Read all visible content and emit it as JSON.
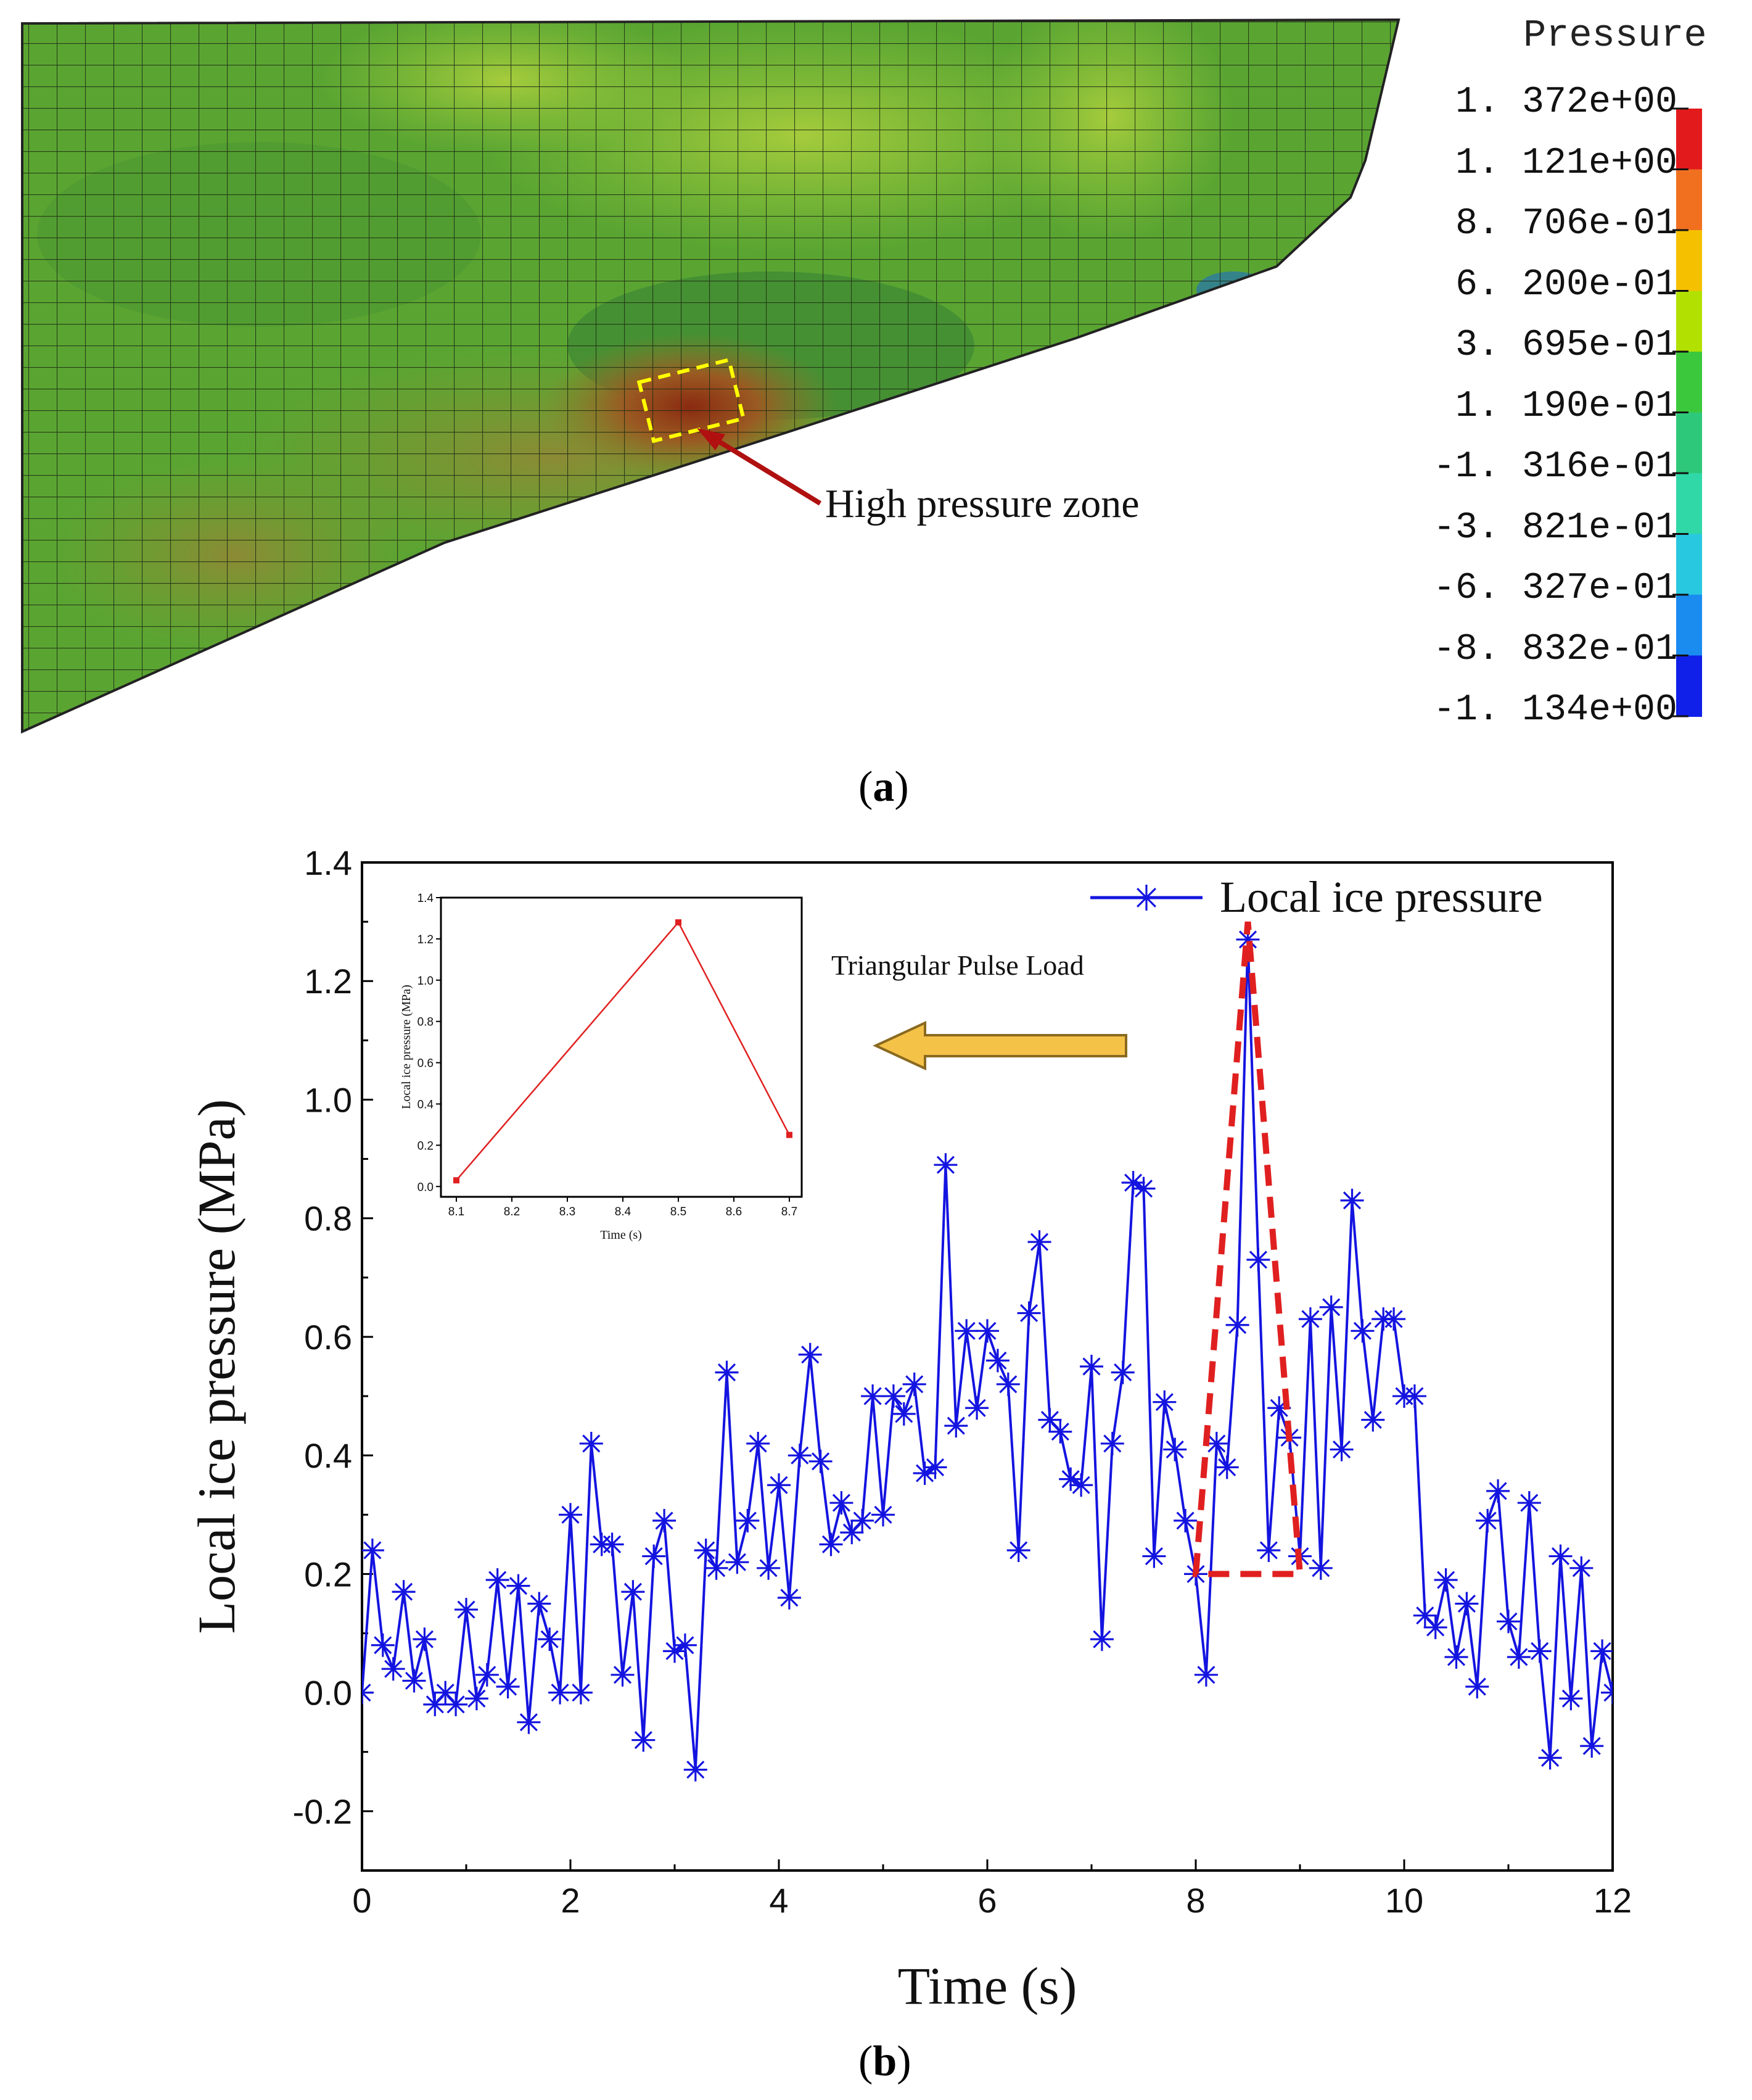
{
  "panel_a": {
    "caption_letter": "a",
    "annotation": "High pressure zone",
    "legend": {
      "title": "Pressure",
      "values": [
        "1. 372e+00",
        "1. 121e+00",
        "8. 706e-01",
        "6. 200e-01",
        "3. 695e-01",
        "1. 190e-01",
        "-1. 316e-01",
        "-3. 821e-01",
        "-6. 327e-01",
        "-8. 832e-01",
        "-1. 134e+00"
      ],
      "colors": [
        "#e31a1c",
        "#f07020",
        "#f5c000",
        "#b2e000",
        "#3cc83c",
        "#2ec87a",
        "#30d8a8",
        "#28c8e0",
        "#1a8cf0",
        "#1020e8"
      ]
    },
    "colors": {
      "mesh_green": "#5aa532",
      "mesh_light": "#8ec43a",
      "mesh_dark": "#4a8a30",
      "hot": "#a05a20",
      "box": "#ffff00",
      "arrow": "#b01010"
    }
  },
  "panel_b": {
    "caption_letter": "b",
    "chart_data": {
      "type": "line",
      "title": "",
      "xlabel": "Time (s)",
      "ylabel": "Local ice pressure (MPa)",
      "xlim": [
        0,
        12
      ],
      "ylim": [
        -0.3,
        1.4
      ],
      "xticks": [
        0,
        2,
        4,
        6,
        8,
        10,
        12
      ],
      "yticks": [
        -0.2,
        0.0,
        0.2,
        0.4,
        0.6,
        0.8,
        1.0,
        1.2,
        1.4
      ],
      "ytick_labels": [
        "-0.2",
        "0.0",
        "0.2",
        "0.4",
        "0.6",
        "0.8",
        "1.0",
        "1.2",
        "1.4"
      ],
      "legend_loc": "top-right",
      "series": [
        {
          "name": "Local ice pressure",
          "color": "#1414e0",
          "marker": "asterisk",
          "x": [
            0.0,
            0.1,
            0.2,
            0.3,
            0.4,
            0.5,
            0.6,
            0.7,
            0.8,
            0.9,
            1.0,
            1.1,
            1.2,
            1.3,
            1.4,
            1.5,
            1.6,
            1.7,
            1.8,
            1.9,
            2.0,
            2.1,
            2.2,
            2.3,
            2.4,
            2.5,
            2.6,
            2.7,
            2.8,
            2.9,
            3.0,
            3.1,
            3.2,
            3.3,
            3.4,
            3.5,
            3.6,
            3.7,
            3.8,
            3.9,
            4.0,
            4.1,
            4.2,
            4.3,
            4.4,
            4.5,
            4.6,
            4.7,
            4.8,
            4.9,
            5.0,
            5.1,
            5.2,
            5.3,
            5.4,
            5.5,
            5.6,
            5.7,
            5.8,
            5.9,
            6.0,
            6.1,
            6.2,
            6.3,
            6.4,
            6.5,
            6.6,
            6.7,
            6.8,
            6.9,
            7.0,
            7.1,
            7.2,
            7.3,
            7.4,
            7.5,
            7.6,
            7.7,
            7.8,
            7.9,
            8.0,
            8.1,
            8.2,
            8.3,
            8.4,
            8.5,
            8.6,
            8.7,
            8.8,
            8.9,
            9.0,
            9.1,
            9.2,
            9.3,
            9.4,
            9.5,
            9.6,
            9.7,
            9.8,
            9.9,
            10.0,
            10.1,
            10.2,
            10.3,
            10.4,
            10.5,
            10.6,
            10.7,
            10.8,
            10.9,
            11.0,
            11.1,
            11.2,
            11.3,
            11.4,
            11.5,
            11.6,
            11.7,
            11.8,
            11.9,
            12.0
          ],
          "y": [
            0.0,
            0.24,
            0.08,
            0.04,
            0.17,
            0.02,
            0.09,
            -0.02,
            0.0,
            -0.02,
            0.14,
            -0.01,
            0.03,
            0.19,
            0.01,
            0.18,
            -0.05,
            0.15,
            0.09,
            0.0,
            0.3,
            0.0,
            0.42,
            0.25,
            0.25,
            0.03,
            0.17,
            -0.08,
            0.23,
            0.29,
            0.07,
            0.08,
            -0.13,
            0.24,
            0.21,
            0.54,
            0.22,
            0.29,
            0.42,
            0.21,
            0.35,
            0.16,
            0.4,
            0.57,
            0.39,
            0.25,
            0.32,
            0.27,
            0.29,
            0.5,
            0.3,
            0.5,
            0.47,
            0.52,
            0.37,
            0.38,
            0.89,
            0.45,
            0.61,
            0.48,
            0.61,
            0.56,
            0.52,
            0.24,
            0.64,
            0.76,
            0.46,
            0.44,
            0.36,
            0.35,
            0.55,
            0.09,
            0.42,
            0.54,
            0.86,
            0.85,
            0.23,
            0.49,
            0.41,
            0.29,
            0.2,
            0.03,
            0.42,
            0.38,
            0.62,
            1.27,
            0.73,
            0.24,
            0.48,
            0.43,
            0.23,
            0.63,
            0.21,
            0.65,
            0.41,
            0.83,
            0.61,
            0.46,
            0.63,
            0.63,
            0.5,
            0.5,
            0.13,
            0.11,
            0.19,
            0.06,
            0.15,
            0.01,
            0.29,
            0.34,
            0.12,
            0.06,
            0.32,
            0.07,
            -0.11,
            0.23,
            -0.01,
            0.21,
            -0.09,
            0.07,
            0.0
          ]
        }
      ],
      "overlay": {
        "label": "Triangular Pulse Load",
        "triangle_x": [
          8.0,
          8.5,
          9.0
        ],
        "triangle_y": [
          0.2,
          1.3,
          0.2
        ],
        "color": "#e02020"
      },
      "inset": {
        "type": "line",
        "xlabel": "Time (s)",
        "ylabel": "Local ice pressure (MPa)",
        "xlim": [
          8.1,
          8.7
        ],
        "ylim": [
          -0.05,
          1.4
        ],
        "xticks": [
          "8.1",
          "8.2",
          "8.3",
          "8.4",
          "8.5",
          "8.6",
          "8.7"
        ],
        "yticks": [
          "0.0",
          "0.2",
          "0.4",
          "0.6",
          "0.8",
          "1.0",
          "1.2",
          "1.4"
        ],
        "x": [
          8.1,
          8.5,
          8.7
        ],
        "y": [
          0.03,
          1.28,
          0.25
        ],
        "color": "#e02020"
      }
    }
  }
}
